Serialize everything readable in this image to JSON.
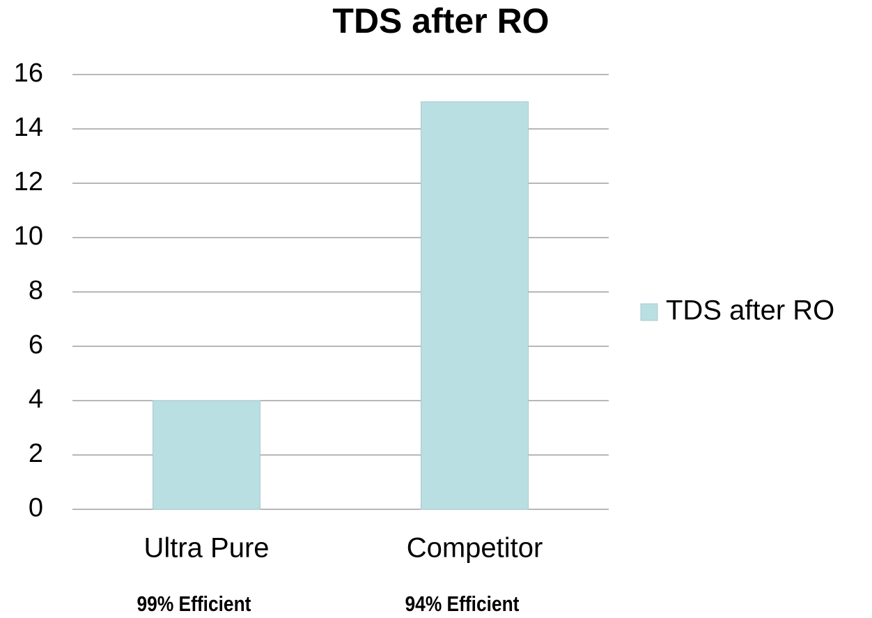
{
  "chart_data": {
    "type": "bar",
    "title": "TDS after RO",
    "categories": [
      "Ultra Pure",
      "Competitor"
    ],
    "series": [
      {
        "name": "TDS after RO",
        "color": "#b9dfe3",
        "values": [
          4,
          15
        ]
      }
    ],
    "annotations": [
      "99% Efficient",
      "94% Efficient"
    ],
    "ylim": [
      0,
      16
    ],
    "yticks": [
      0,
      2,
      4,
      6,
      8,
      10,
      12,
      14,
      16
    ],
    "grid": true,
    "legend": "right"
  }
}
